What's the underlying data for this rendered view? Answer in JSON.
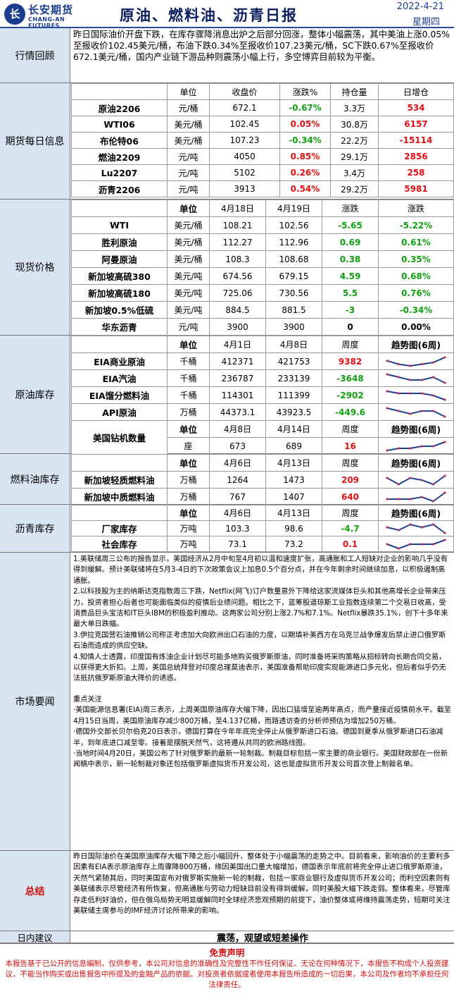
{
  "header": {
    "logo_mark": "长",
    "logo_cn": "长安期货",
    "logo_en": "CHANG-AN FUTURES",
    "title": "原油、燃料油、沥青日报",
    "date": "2022-4-21",
    "weekday": "星期四"
  },
  "review": {
    "label": "行情回顾",
    "text": "昨日国际油价开盘下跌，在库存骤降消息出炉之后部分回涨，整体小幅震荡，其中美油上涨0.05%至报收价102.45美元/桶，布油下跌0.34%至报收价107.23美元/桶，SC下跌0.67%至报收价672.1美元/桶，国内产业链下游品种则震荡小幅上行，多空博弈目前较为平衡。"
  },
  "futures": {
    "label": "期货每日信息",
    "headers": [
      "",
      "单位",
      "收盘价",
      "涨跌%",
      "持仓量",
      "日增仓"
    ],
    "rows": [
      [
        "原油2206",
        "元/桶",
        "672.1",
        "-0.67%",
        "3.3万",
        "534"
      ],
      [
        "WTI06",
        "美元/桶",
        "102.45",
        "0.05%",
        "30.8万",
        "6157"
      ],
      [
        "布伦特06",
        "美元/桶",
        "107.23",
        "-0.34%",
        "22.2万",
        "-15114"
      ],
      [
        "燃油2209",
        "元/吨",
        "4050",
        "0.85%",
        "29.1万",
        "2856"
      ],
      [
        "Lu2207",
        "元/吨",
        "5102",
        "0.26%",
        "3.4万",
        "258"
      ],
      [
        "沥青2206",
        "元/吨",
        "3913",
        "0.54%",
        "29.2万",
        "5981"
      ]
    ]
  },
  "spot": {
    "label": "现货价格",
    "headers": [
      "",
      "单位",
      "4月18日",
      "4月19日",
      "涨跌",
      "涨跌"
    ],
    "rows": [
      [
        "WTI",
        "美元/桶",
        "108.21",
        "102.56",
        "-5.65",
        "-5.22%"
      ],
      [
        "胜利原油",
        "美元/桶",
        "112.27",
        "112.96",
        "0.69",
        "0.61%"
      ],
      [
        "阿曼原油",
        "美元/桶",
        "108.3",
        "108.68",
        "0.38",
        "0.35%"
      ],
      [
        "新加坡高硫380",
        "美元/吨",
        "674.56",
        "679.15",
        "4.59",
        "0.68%"
      ],
      [
        "新加坡高硫180",
        "美元/吨",
        "725.06",
        "730.56",
        "5.5",
        "0.76%"
      ],
      [
        "新加坡0.5%低硫",
        "美元/吨",
        "884.5",
        "881.5",
        "-3",
        "-0.34%"
      ],
      [
        "华东沥青",
        "元/吨",
        "3900",
        "3900",
        "0",
        "0.00%"
      ]
    ]
  },
  "crude_inv": {
    "label": "原油库存",
    "headers": [
      "",
      "单位",
      "4月1日",
      "4月8日",
      "周度",
      "趋势图(6周)"
    ],
    "rows": [
      [
        "EIA商业原油",
        "千桶",
        "412371",
        "421753",
        "9382"
      ],
      [
        "EIA汽油",
        "千桶",
        "236787",
        "233139",
        "-3648"
      ],
      [
        "EIA馏分燃料油",
        "千桶",
        "114301",
        "111399",
        "-2902"
      ],
      [
        "API原油",
        "万桶",
        "44373.1",
        "43923.5",
        "-449.6"
      ]
    ],
    "rig_headers": [
      "美国钻机数量",
      "单位",
      "4月8日",
      "4月14日",
      "周度",
      "趋势图(6周)"
    ],
    "rig_row": [
      "",
      "座",
      "673",
      "689",
      "16"
    ]
  },
  "fuel_inv": {
    "label": "燃料油库存",
    "headers": [
      "",
      "单位",
      "4月6日",
      "4月13日",
      "周度",
      "趋势图(6周)"
    ],
    "rows": [
      [
        "新加坡轻质燃料油",
        "万桶",
        "1264",
        "1473",
        "209"
      ],
      [
        "新加坡中质燃料油",
        "万桶",
        "767",
        "1407",
        "640"
      ]
    ]
  },
  "asphalt_inv": {
    "label": "沥青库存",
    "headers": [
      "",
      "单位",
      "4月6日",
      "4月13日",
      "周度",
      "趋势图(6周)"
    ],
    "rows": [
      [
        "厂家库存",
        "万吨",
        "103.3",
        "98.6",
        "-4.7"
      ],
      [
        "社会库存",
        "万吨",
        "73.1",
        "73.2",
        "0.1"
      ]
    ]
  },
  "sparklines": {
    "eia_crude": [
      5,
      3,
      2,
      3,
      4,
      7
    ],
    "eia_gasoline": [
      6,
      5,
      4,
      4,
      5,
      3
    ],
    "eia_distillate": [
      6,
      5,
      5,
      5,
      4,
      2
    ],
    "api_crude": [
      6,
      5,
      4,
      5,
      5,
      3
    ],
    "rigs": [
      2,
      3,
      3,
      4,
      4,
      6
    ],
    "sg_light": [
      5,
      2,
      5,
      4,
      2,
      6
    ],
    "sg_middle": [
      3,
      3,
      3,
      4,
      2,
      6
    ],
    "factory": [
      5,
      4,
      6,
      5,
      6,
      3
    ],
    "social": [
      5,
      4,
      5,
      5,
      5,
      6
    ]
  },
  "colors": {
    "sparkline": "#1f3f8f",
    "sparkdot": "#c03050",
    "label_bg": "#d9e4f2",
    "up": "#e01010",
    "down": "#10a010"
  },
  "news": {
    "label": "市场要闻",
    "p1": "1.美联储周三公布的报告显示，美国经济从2月中旬至4月初以温和速度扩张，高通胀和工人短缺对企业的影响几乎没有得到缓解。预计美联储将在5月3-4日的下次政策会议上加息0.5个百分点，并在今年剩余时间继续加息，以积极遏制高通胀。",
    "p2": "2.以科技股为主的纳斯达克指数周三下跌，Netflix(网飞)订户数量意外下降给这家流媒体巨头和其他高增长企业带来压力，投资者担心后者也可能面临类似的疫情后业绩问题。相比之下，蓝筹股道琼斯工业指数连续第二个交易日收高，受消费品巨头宝洁和IT巨头IBM的积极盈利推动。这两家公司分别上涨2.7%和7.1%。Netflix暴跌35.1%，创下十多年来最大单日跌幅。",
    "p3": "3.伊拉克国营石油推销公司称正考虑加大向欧洲出口石油的力度，以期填补美西方在乌克兰战争爆发后禁止进口俄罗斯石油而造成的供应空缺。",
    "p4": "4.知情人士透露，印度国有炼油企业计划尽可能多地购买俄罗斯原油，同时准备将采购策略从招标转向长期合同交易，以获得更大折扣。上周，美国总统拜登对印度总理莫迪表示，美国准备帮助印度实现能源进口多元化，但后者似乎仍无法抵抗俄罗斯原油大降价的诱惑。",
    "focus_title": "重点关注",
    "f1": "·美国能源信息署(EIA)周三表示，上周美国原油库存大幅下降，因出口猛增至逾两年高点，而产量接近疫情前水平。截至4月15日当周，美国原油库存减少800万桶，至4.137亿桶，而路透访查的分析师预估为增加250万桶。",
    "f2": "·德国外交部长贝尔伯克20日表示，德国打算在今年年底完全停止从俄罗斯进口石油。德国到夏季从俄罗斯进口石油减半，到年底进口减至零。接着是摆脱天然气，这将遵从共同的欧洲路线图。",
    "f3": "·当地时间4月20日，美国公布了针对俄罗斯的最新一轮制裁。制裁目标包括一家主要的商业银行。美国财政部在一份新闻稿中表示，新一轮制裁对象还包括俄罗斯虚拟货币开发公司，这也是虚拟货币开发公司首次登上制裁名单。"
  },
  "summary": {
    "label": "总结",
    "text": "昨日国际油价在美国原油库存大幅下降之后小幅回升，整体处于小幅震荡的走势之中。目前看来，影响油价的主要利多因素有EIA表示原油库存上周骤降800万桶，缘因美国出口量大幅增加，德国表示年底前将完全停止进口俄罗斯原油，天然气紧随其后，同时美国宣布对俄罗斯实施新一轮的制裁，包括一家商业银行及虚拟货币开发公司；而利空因素则有美联储表示尽管经济有所恢复，但高通胀与劳动力短缺目前没有得到缓解，同时美股大幅下跌走弱。整体看来，尽管库存走低利好油价，但在俄乌局势无明显缓解同时全球经济悲观预期的前提下，油价整体或将维持震荡走势，短期可关注美联储主席参与的IMF经济讨论所带来的影响。"
  },
  "advice": {
    "label": "日内建议",
    "text": "震荡，观望或短差操作"
  },
  "disclaimer": {
    "title": "免责声明",
    "text": "本报告基于已公开的信息编制，仅供参考，本公司对信息的准确性及完整性不作任何保证。无论在何种情况下，本报告不构成个人投资建议，不能当作购买或出售报告中所提及的金融产品的依据。对投资者依据或者使用本报告所造成的一切后果，本公司及作者均不承担任何法律责任。"
  }
}
